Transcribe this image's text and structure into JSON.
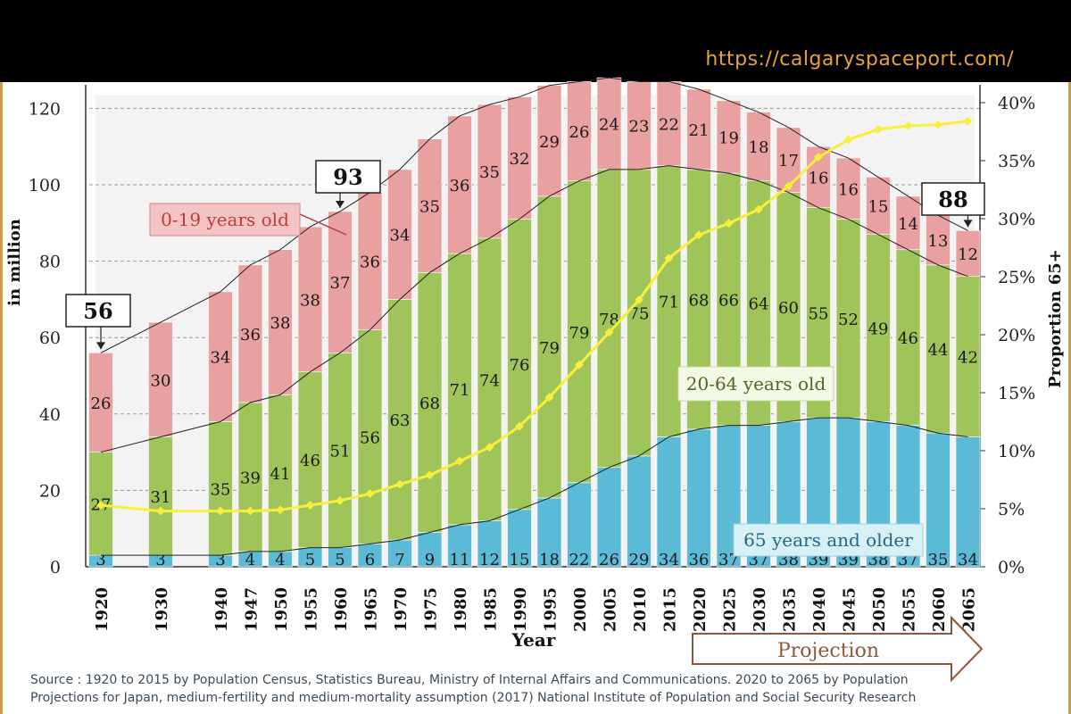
{
  "header": {
    "url": "https://calgaryspaceport.com/",
    "brand_color": "#e8a23a"
  },
  "source_note": {
    "line1": "Source : 1920  to 2015  by Population Census, Statistics Bureau, Ministry of Internal Affairs and Communications. 2020 to 2065  by Population",
    "line2": "Projections for Japan, medium-fertility and medium-mortality assumption (2017) National Institute of Population and Social Security Research"
  },
  "chart_data": {
    "type": "bar",
    "stacked": true,
    "title": "",
    "xlabel": "Year",
    "ylabel": "in million",
    "y2label": "Proportion 65+",
    "ylim": [
      0,
      125
    ],
    "yticks": [
      "0",
      "20",
      "40",
      "60",
      "80",
      "100",
      "120"
    ],
    "y2lim": [
      0,
      40
    ],
    "y2ticks": [
      "0%",
      "5%",
      "10%",
      "15%",
      "20%",
      "25%",
      "30%",
      "35%",
      "40%"
    ],
    "categories": [
      "1920",
      "1930",
      "1940",
      "1947",
      "1950",
      "1955",
      "1960",
      "1965",
      "1970",
      "1975",
      "1980",
      "1985",
      "1990",
      "1995",
      "2000",
      "2005",
      "2010",
      "2015",
      "2020",
      "2025",
      "2030",
      "2035",
      "2040",
      "2045",
      "2050",
      "2055",
      "2060",
      "2065"
    ],
    "category_slots": [
      0,
      2,
      4,
      5,
      6,
      7,
      8,
      9,
      10,
      11,
      12,
      13,
      14,
      15,
      16,
      17,
      18,
      19,
      20,
      21,
      22,
      23,
      24,
      25,
      26,
      27,
      28,
      29
    ],
    "series": [
      {
        "name": "65 years and older",
        "color": "#5bbad5",
        "values": [
          3,
          3,
          3,
          4,
          4,
          5,
          5,
          6,
          7,
          9,
          11,
          12,
          15,
          18,
          22,
          26,
          29,
          34,
          36,
          37,
          37,
          38,
          39,
          39,
          38,
          37,
          35,
          34
        ],
        "labels": [
          "3",
          "3",
          "3",
          "4",
          "4",
          "5",
          "5",
          "6",
          "7",
          "9",
          "11",
          "12",
          "15",
          "18",
          "22",
          "26",
          "29",
          "34",
          "36",
          "37",
          "37",
          "38",
          "39",
          "39",
          "38",
          "37",
          "35",
          "34"
        ]
      },
      {
        "name": "20-64 years old",
        "color": "#9fc55a",
        "values": [
          27,
          31,
          35,
          39,
          41,
          46,
          51,
          56,
          63,
          68,
          71,
          74,
          76,
          79,
          79,
          78,
          75,
          71,
          68,
          66,
          64,
          60,
          55,
          52,
          49,
          46,
          44,
          42
        ],
        "labels": [
          "27",
          "31",
          "35",
          "39",
          "41",
          "46",
          "51",
          "56",
          "63",
          "68",
          "71",
          "74",
          "76",
          "79",
          "79",
          "78",
          "75",
          "71",
          "68",
          "66",
          "64",
          "60",
          "55",
          "52",
          "49",
          "46",
          "44",
          "42"
        ]
      },
      {
        "name": "0-19 years old",
        "color": "#e8a0a0",
        "values": [
          26,
          30,
          34,
          36,
          38,
          38,
          37,
          36,
          34,
          35,
          36,
          35,
          32,
          29,
          26,
          24,
          23,
          22,
          21,
          19,
          18,
          17,
          16,
          16,
          15,
          14,
          13,
          12
        ],
        "labels": [
          "26",
          "30",
          "34",
          "36",
          "38",
          "38",
          "37",
          "36",
          "34",
          "35",
          "36",
          "35",
          "32",
          "29",
          "26",
          "24",
          "23",
          "22",
          "21",
          "19",
          "18",
          "17",
          "16",
          "16",
          "15",
          "14",
          "13",
          "12"
        ]
      }
    ],
    "proportion_65_plus": {
      "name": "Proportion 65+",
      "color": "#f7ef3c",
      "values": [
        5.3,
        4.8,
        4.8,
        4.8,
        4.9,
        5.3,
        5.7,
        6.3,
        7.1,
        7.9,
        9.1,
        10.3,
        12.1,
        14.6,
        17.4,
        20.2,
        23.0,
        26.6,
        28.6,
        29.6,
        30.8,
        32.8,
        35.3,
        36.8,
        37.7,
        38.0,
        38.1,
        38.4
      ]
    },
    "callouts": [
      {
        "category": "1920",
        "text": "56"
      },
      {
        "category": "1960",
        "text": "93"
      },
      {
        "category": "2065",
        "text": "88"
      }
    ],
    "legend": {
      "young": "0-19 years old",
      "working": "20-64 years old",
      "old": "65 years and older"
    },
    "projection_label": "Projection"
  }
}
